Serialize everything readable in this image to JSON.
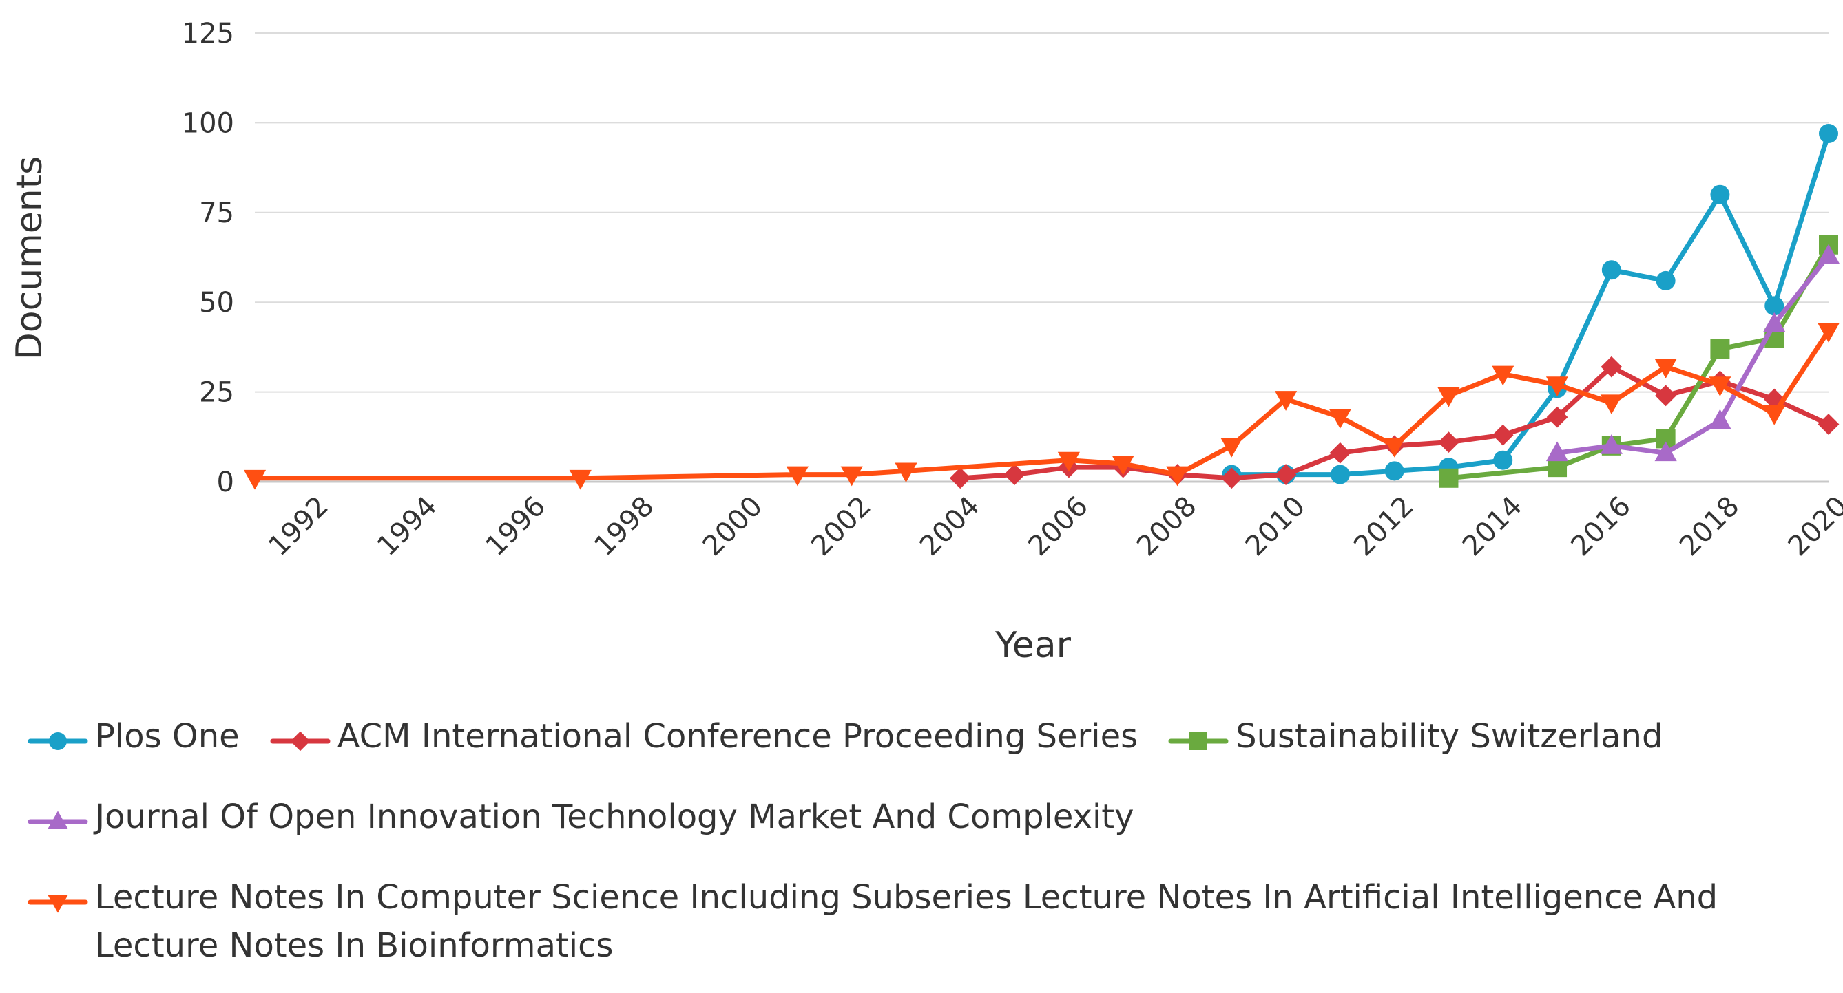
{
  "chart_data": {
    "type": "line",
    "title": "",
    "xlabel": "Year",
    "ylabel": "Documents",
    "xlim": [
      1991,
      2020
    ],
    "ylim": [
      0,
      125
    ],
    "yticks": [
      0,
      25,
      50,
      75,
      100,
      125
    ],
    "xticks": [
      1992,
      1994,
      1996,
      1998,
      2000,
      2002,
      2004,
      2006,
      2008,
      2010,
      2012,
      2014,
      2016,
      2018,
      2020
    ],
    "xtick_labels": [
      "1992",
      "1994",
      "1996",
      "1998",
      "2000",
      "2002",
      "2004",
      "2006",
      "2008",
      "2010",
      "2012",
      "2014",
      "2016",
      "2018",
      "2020"
    ],
    "ytick_labels": [
      "0",
      "25",
      "50",
      "75",
      "100",
      "125"
    ],
    "grid": true,
    "legend_position": "bottom",
    "series": [
      {
        "name": "Plos One",
        "color": "#1aa0c8",
        "marker": "circle",
        "x": [
          2009,
          2010,
          2011,
          2012,
          2013,
          2014,
          2015,
          2016,
          2017,
          2018,
          2019,
          2020
        ],
        "values": [
          2,
          2,
          2,
          3,
          4,
          6,
          26,
          59,
          56,
          80,
          49,
          97
        ]
      },
      {
        "name": "ACM International Conference Proceeding Series",
        "color": "#d7373f",
        "marker": "diamond",
        "x": [
          2004,
          2005,
          2006,
          2007,
          2008,
          2009,
          2010,
          2011,
          2012,
          2013,
          2014,
          2015,
          2016,
          2017,
          2018,
          2019,
          2020
        ],
        "values": [
          1,
          2,
          4,
          4,
          2,
          1,
          2,
          8,
          10,
          11,
          13,
          18,
          32,
          24,
          28,
          23,
          16
        ]
      },
      {
        "name": "Sustainability Switzerland",
        "color": "#6aaa3f",
        "marker": "square",
        "x": [
          2013,
          2015,
          2016,
          2017,
          2018,
          2019,
          2020
        ],
        "values": [
          1,
          4,
          10,
          12,
          37,
          40,
          66
        ]
      },
      {
        "name": "Journal Of Open Innovation Technology Market And Complexity",
        "color": "#a86ac8",
        "marker": "triangle-up",
        "x": [
          2015,
          2016,
          2017,
          2018,
          2019,
          2020
        ],
        "values": [
          8,
          10,
          8,
          17,
          44,
          63
        ]
      },
      {
        "name": "Lecture Notes In Computer Science Including Subseries Lecture Notes In Artificial Intelligence And Lecture Notes In Bioinformatics",
        "color": "#ff4f12",
        "marker": "triangle-down",
        "x": [
          1991,
          1997,
          2001,
          2002,
          2003,
          2006,
          2007,
          2008,
          2009,
          2010,
          2011,
          2012,
          2013,
          2014,
          2015,
          2016,
          2017,
          2018,
          2019,
          2020
        ],
        "values": [
          1,
          1,
          2,
          2,
          3,
          6,
          5,
          2,
          10,
          23,
          18,
          10,
          24,
          30,
          27,
          22,
          32,
          27,
          19,
          42
        ]
      }
    ]
  }
}
